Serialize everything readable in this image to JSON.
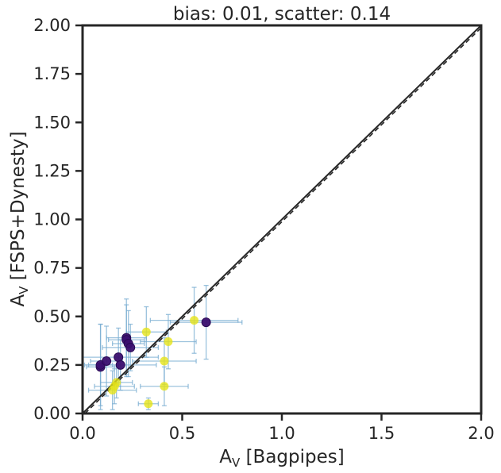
{
  "chart_data": {
    "type": "scatter",
    "title": "bias: 0.01, scatter: 0.14",
    "xlabel": "A_V [Bagpipes]",
    "ylabel": "A_V [FSPS+Dynesty]",
    "xlabel_parts": {
      "base": "A",
      "sub": "V",
      "rest": " [Bagpipes]"
    },
    "ylabel_parts": {
      "base": "A",
      "sub": "V",
      "rest": " [FSPS+Dynesty]"
    },
    "xlim": [
      0,
      2
    ],
    "ylim": [
      0,
      2
    ],
    "xticks": [
      0.0,
      0.5,
      1.0,
      1.5,
      2.0
    ],
    "xtick_labels": [
      "0.0",
      "0.5",
      "1.0",
      "1.5",
      "2.0"
    ],
    "yticks": [
      0.0,
      0.25,
      0.5,
      0.75,
      1.0,
      1.25,
      1.5,
      1.75,
      2.0
    ],
    "ytick_labels": [
      "0.00",
      "0.25",
      "0.50",
      "0.75",
      "1.00",
      "1.25",
      "1.50",
      "1.75",
      "2.00"
    ],
    "grid": false,
    "one_to_one_line": true,
    "colors": {
      "purple": "#3b0f6f",
      "yellow": "#e5e419",
      "errorbar": "#7aadd1",
      "axis": "#262626"
    },
    "points": [
      {
        "x": 0.09,
        "y": 0.24,
        "xerr": 0.07,
        "yerr": 0.22,
        "color": "purple"
      },
      {
        "x": 0.09,
        "y": 0.25,
        "xerr": 0.06,
        "yerr": 0.21,
        "color": "purple"
      },
      {
        "x": 0.12,
        "y": 0.27,
        "xerr": 0.08,
        "yerr": 0.18,
        "color": "purple"
      },
      {
        "x": 0.18,
        "y": 0.29,
        "xerr": 0.2,
        "yerr": 0.15,
        "color": "purple"
      },
      {
        "x": 0.19,
        "y": 0.25,
        "xerr": 0.18,
        "yerr": 0.13,
        "color": "purple"
      },
      {
        "x": 0.22,
        "y": 0.39,
        "xerr": 0.1,
        "yerr": 0.2,
        "color": "purple"
      },
      {
        "x": 0.22,
        "y": 0.38,
        "xerr": 0.09,
        "yerr": 0.18,
        "color": "purple"
      },
      {
        "x": 0.23,
        "y": 0.36,
        "xerr": 0.08,
        "yerr": 0.17,
        "color": "purple"
      },
      {
        "x": 0.24,
        "y": 0.34,
        "xerr": 0.14,
        "yerr": 0.12,
        "color": "purple"
      },
      {
        "x": 0.62,
        "y": 0.47,
        "xerr": 0.18,
        "yerr": 0.19,
        "color": "purple"
      },
      {
        "x": 0.15,
        "y": 0.12,
        "xerr": 0.12,
        "yerr": 0.1,
        "color": "yellow"
      },
      {
        "x": 0.16,
        "y": 0.14,
        "xerr": 0.1,
        "yerr": 0.09,
        "color": "yellow"
      },
      {
        "x": 0.17,
        "y": 0.16,
        "xerr": 0.08,
        "yerr": 0.08,
        "color": "yellow"
      },
      {
        "x": 0.32,
        "y": 0.42,
        "xerr": 0.1,
        "yerr": 0.13,
        "color": "yellow"
      },
      {
        "x": 0.33,
        "y": 0.05,
        "xerr": 0.05,
        "yerr": 0.03,
        "color": "yellow"
      },
      {
        "x": 0.41,
        "y": 0.27,
        "xerr": 0.16,
        "yerr": 0.12,
        "color": "yellow"
      },
      {
        "x": 0.41,
        "y": 0.14,
        "xerr": 0.12,
        "yerr": 0.1,
        "color": "yellow"
      },
      {
        "x": 0.43,
        "y": 0.37,
        "xerr": 0.14,
        "yerr": 0.14,
        "color": "yellow"
      },
      {
        "x": 0.56,
        "y": 0.48,
        "xerr": 0.22,
        "yerr": 0.17,
        "color": "yellow"
      }
    ]
  }
}
